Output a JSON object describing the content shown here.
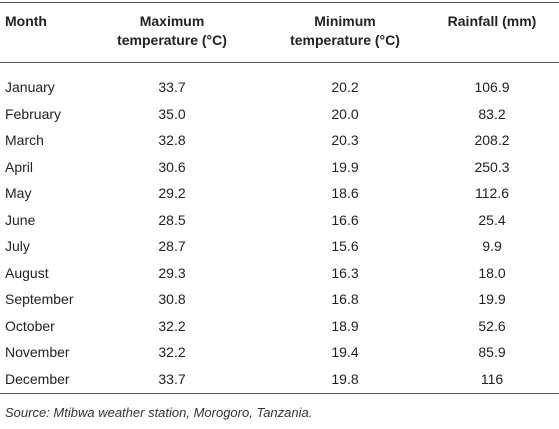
{
  "table": {
    "header": [
      "Month",
      "Maximum temperature (°C)",
      "Minimum temperature (°C)",
      "Rainfall (mm)"
    ],
    "rows": [
      [
        "January",
        "33.7",
        "20.2",
        "106.9"
      ],
      [
        "February",
        "35.0",
        "20.0",
        "83.2"
      ],
      [
        "March",
        "32.8",
        "20.3",
        "208.2"
      ],
      [
        "April",
        "30.6",
        "19.9",
        "250.3"
      ],
      [
        "May",
        "29.2",
        "18.6",
        "112.6"
      ],
      [
        "June",
        "28.5",
        "16.6",
        "25.4"
      ],
      [
        "July",
        "28.7",
        "15.6",
        "9.9"
      ],
      [
        "August",
        "29.3",
        "16.3",
        "18.0"
      ],
      [
        "September",
        "30.8",
        "16.8",
        "19.9"
      ],
      [
        "October",
        "32.2",
        "18.9",
        "52.6"
      ],
      [
        "November",
        "32.2",
        "19.4",
        "85.9"
      ],
      [
        "December",
        "33.7",
        "19.8",
        "116"
      ]
    ],
    "footnote": "Source: Mtibwa weather station, Morogoro, Tanzania."
  }
}
